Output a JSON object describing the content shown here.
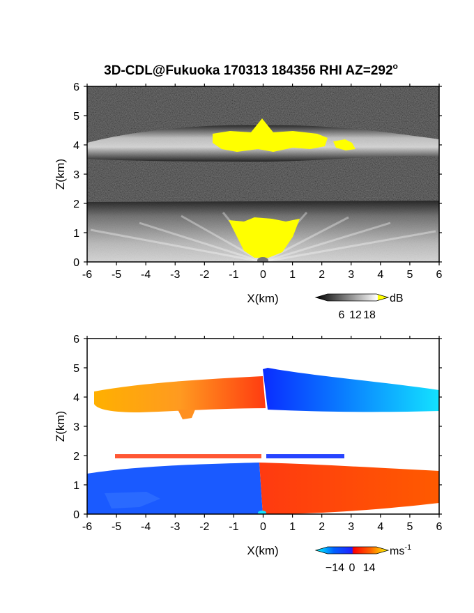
{
  "title": "3D-CDL@Fukuoka 170313 184356 RHI AZ=292",
  "title_suffix": "o",
  "chart_data": [
    {
      "type": "heatmap",
      "name": "reflectivity",
      "xlabel": "X(km)",
      "ylabel": "Z(km)",
      "xlim": [
        -6,
        6
      ],
      "ylim": [
        0,
        6
      ],
      "xticks": [
        "-6",
        "-5",
        "-4",
        "-3",
        "-2",
        "-1",
        "0",
        "1",
        "2",
        "3",
        "4",
        "5",
        "6"
      ],
      "yticks": [
        "0",
        "1",
        "2",
        "3",
        "4",
        "5",
        "6"
      ],
      "colorbar": {
        "unit": "dB",
        "ticks": [
          "6",
          "12",
          "18"
        ],
        "range": [
          0,
          21
        ],
        "colormap": "grayscale-to-yellow"
      },
      "features": [
        {
          "label": "upper cloud layer",
          "z_km": [
            3.6,
            4.6
          ],
          "x_km": [
            -6,
            6
          ]
        },
        {
          "label": "saturated core (yellow)",
          "z_km": [
            3.7,
            4.6
          ],
          "x_km": [
            -1.8,
            3.2
          ]
        },
        {
          "label": "lower layer",
          "z_km": [
            0,
            2.0
          ],
          "x_km": [
            -6,
            6
          ]
        },
        {
          "label": "near-range saturation (yellow)",
          "z_km": [
            0,
            1.5
          ],
          "x_km": [
            -1.2,
            1.5
          ]
        }
      ]
    },
    {
      "type": "heatmap",
      "name": "velocity",
      "xlabel": "X(km)",
      "ylabel": "Z(km)",
      "xlim": [
        -6,
        6
      ],
      "ylim": [
        0,
        6
      ],
      "xticks": [
        "-6",
        "-5",
        "-4",
        "-3",
        "-2",
        "-1",
        "0",
        "1",
        "2",
        "3",
        "4",
        "5",
        "6"
      ],
      "yticks": [
        "0",
        "1",
        "2",
        "3",
        "4",
        "5",
        "6"
      ],
      "colorbar": {
        "unit": "ms",
        "unit_exp": "-1",
        "ticks": [
          "-14",
          "0",
          "14"
        ],
        "range": [
          -20,
          20
        ],
        "colormap": "cyan-blue-red-yellow"
      },
      "features": [
        {
          "label": "upper layer west",
          "z_km": [
            3.4,
            4.6
          ],
          "x_km": [
            -6,
            0
          ],
          "velocity_ms": [
            5,
            14
          ]
        },
        {
          "label": "upper layer east",
          "z_km": [
            3.4,
            4.6
          ],
          "x_km": [
            0,
            6
          ],
          "velocity_ms": [
            -14,
            -6
          ]
        },
        {
          "label": "lower layer west",
          "z_km": [
            0,
            1.6
          ],
          "x_km": [
            -6,
            0
          ],
          "velocity_ms": [
            -10,
            -6
          ]
        },
        {
          "label": "lower layer east",
          "z_km": [
            0,
            1.6
          ],
          "x_km": [
            0,
            6
          ],
          "velocity_ms": [
            4,
            9
          ]
        },
        {
          "label": "thin layer",
          "z_km": [
            1.75,
            2.0
          ],
          "x_km": [
            -5,
            3
          ]
        }
      ]
    }
  ]
}
